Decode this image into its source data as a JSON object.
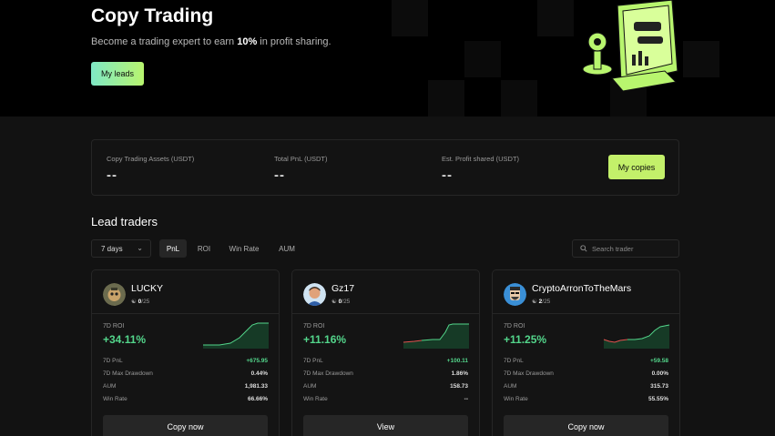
{
  "hero": {
    "title": "Copy Trading",
    "subtitle_pre": "Become a trading expert to earn ",
    "subtitle_bold": "10%",
    "subtitle_post": " in profit sharing.",
    "my_leads_button": "My leads"
  },
  "stats": {
    "items": [
      {
        "label": "Copy Trading Assets (USDT)",
        "value": "--"
      },
      {
        "label": "Total PnL (USDT)",
        "value": "--"
      },
      {
        "label": "Est. Profit shared (USDT)",
        "value": "--"
      }
    ],
    "my_copies_button": "My copies"
  },
  "lead_traders": {
    "title": "Lead traders",
    "period_select": "7 days",
    "tabs": [
      "PnL",
      "ROI",
      "Win Rate",
      "AUM"
    ],
    "active_tab": "PnL",
    "search_placeholder": "Search trader"
  },
  "metric_labels": {
    "roi": "7D ROI",
    "pnl": "7D PnL",
    "drawdown": "7D Max Drawdown",
    "aum": "AUM",
    "win_rate": "Win Rate"
  },
  "traders": [
    {
      "name": "LUCKY",
      "copiers": "0",
      "max_copiers": "/25",
      "roi": "+34.11%",
      "pnl": "+675.95",
      "drawdown": "0.44%",
      "aum": "1,981.33",
      "win_rate": "66.66%",
      "button": "Copy now"
    },
    {
      "name": "Gz17",
      "copiers": "0",
      "max_copiers": "/25",
      "roi": "+11.16%",
      "pnl": "+100.11",
      "drawdown": "1.86%",
      "aum": "158.73",
      "win_rate": "--",
      "button": "View"
    },
    {
      "name": "CryptoArronToTheMars",
      "copiers": "2",
      "max_copiers": "/25",
      "roi": "+11.25%",
      "pnl": "+59.58",
      "drawdown": "0.00%",
      "aum": "315.73",
      "win_rate": "55.55%",
      "button": "Copy now"
    }
  ],
  "colors": {
    "accent_green": "#53d68b",
    "accent_lime": "#c3f06a",
    "negative_red": "#e0524f"
  }
}
